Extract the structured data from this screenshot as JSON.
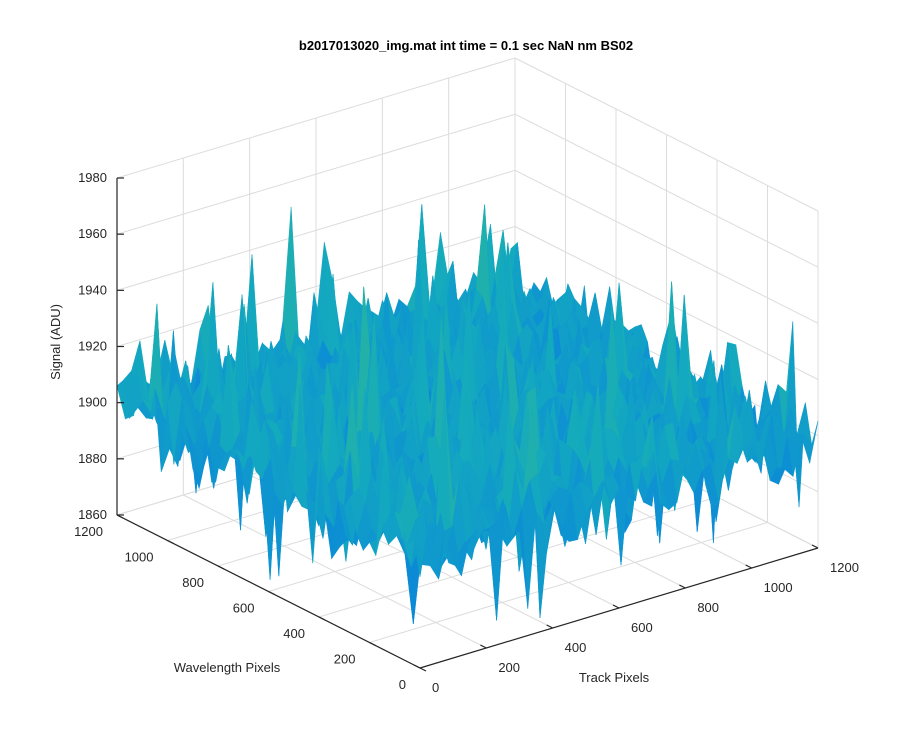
{
  "chart_data": {
    "type": "surface",
    "title": "b2017013020_img.mat int time = 0.1 sec  NaN nm BS02",
    "xlabel": "Track Pixels",
    "ylabel": "Wavelength Pixels",
    "zlabel": "Signal (ADU)",
    "xlim": [
      0,
      1200
    ],
    "ylim": [
      0,
      1200
    ],
    "zlim": [
      1860,
      1980
    ],
    "x_ticks": [
      "0",
      "200",
      "400",
      "600",
      "800",
      "1000",
      "1200"
    ],
    "y_ticks": [
      "0",
      "200",
      "400",
      "600",
      "800",
      "1000",
      "1200"
    ],
    "z_ticks": [
      "1860",
      "1880",
      "1900",
      "1920",
      "1940",
      "1960",
      "1980"
    ],
    "grid": true,
    "colormap": "parula",
    "surface_mean": 1900,
    "surface_min_approx": 1855,
    "surface_max_approx": 1975,
    "colors": {
      "low": "#0d8fd4",
      "mid": "#20b2aa",
      "high": "#c8d24a",
      "peak": "#f5e13a"
    }
  }
}
